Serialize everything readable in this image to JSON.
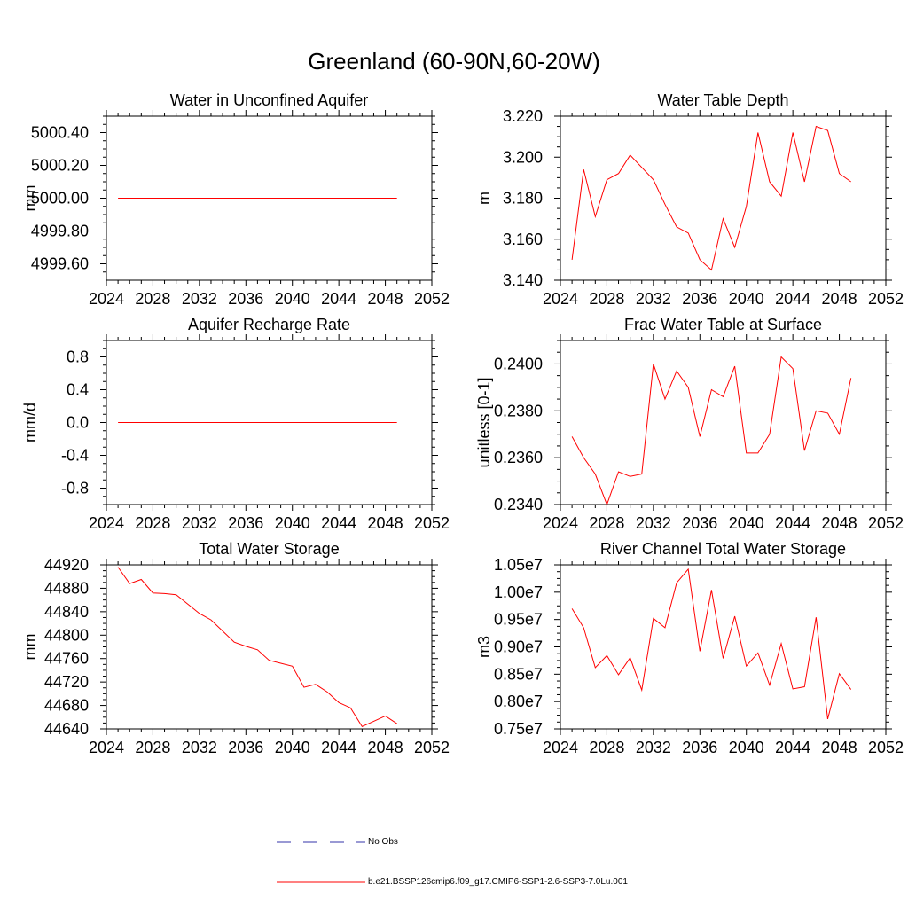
{
  "title": "Greenland (60-90N,60-20W)",
  "colors": {
    "model": "#ff0000",
    "obs": "#3333aa",
    "axis": "#000000"
  },
  "legend": {
    "obs_label": "No Obs",
    "model_label": "b.e21.BSSP126cmip6.f09_g17.CMIP6-SSP1-2.6-SSP3-7.0Lu.001"
  },
  "chart_data": [
    {
      "type": "line",
      "title": "Water in Unconfined Aquifer",
      "ylabel": "mm",
      "xlim": [
        2024,
        2052
      ],
      "ylim": [
        4999.5,
        5000.5
      ],
      "xticks": [
        2024,
        2028,
        2032,
        2036,
        2040,
        2044,
        2048,
        2052
      ],
      "yticks": [
        4999.6,
        4999.8,
        5000.0,
        5000.2,
        5000.4
      ],
      "ytick_labels": [
        "4999.60",
        "4999.80",
        "5000.00",
        "5000.20",
        "5000.40"
      ],
      "series": [
        {
          "x": [
            2025,
            2026,
            2027,
            2028,
            2029,
            2030,
            2031,
            2032,
            2033,
            2034,
            2035,
            2036,
            2037,
            2038,
            2039,
            2040,
            2041,
            2042,
            2043,
            2044,
            2045,
            2046,
            2047,
            2048,
            2049
          ],
          "values": [
            5000,
            5000,
            5000,
            5000,
            5000,
            5000,
            5000,
            5000,
            5000,
            5000,
            5000,
            5000,
            5000,
            5000,
            5000,
            5000,
            5000,
            5000,
            5000,
            5000,
            5000,
            5000,
            5000,
            5000,
            5000
          ]
        }
      ]
    },
    {
      "type": "line",
      "title": "Water Table Depth",
      "ylabel": "m",
      "xlim": [
        2024,
        2052
      ],
      "ylim": [
        3.14,
        3.22
      ],
      "xticks": [
        2024,
        2028,
        2032,
        2036,
        2040,
        2044,
        2048,
        2052
      ],
      "yticks": [
        3.14,
        3.16,
        3.18,
        3.2,
        3.22
      ],
      "ytick_labels": [
        "3.140",
        "3.160",
        "3.180",
        "3.200",
        "3.220"
      ],
      "series": [
        {
          "x": [
            2025,
            2026,
            2027,
            2028,
            2029,
            2030,
            2031,
            2032,
            2033,
            2034,
            2035,
            2036,
            2037,
            2038,
            2039,
            2040,
            2041,
            2042,
            2043,
            2044,
            2045,
            2046,
            2047,
            2048,
            2049
          ],
          "values": [
            3.15,
            3.194,
            3.171,
            3.189,
            3.192,
            3.201,
            3.195,
            3.189,
            3.177,
            3.166,
            3.163,
            3.15,
            3.145,
            3.17,
            3.156,
            3.176,
            3.212,
            3.188,
            3.181,
            3.212,
            3.188,
            3.215,
            3.213,
            3.192,
            3.188
          ]
        }
      ]
    },
    {
      "type": "line",
      "title": "Aquifer Recharge Rate",
      "ylabel": "mm/d",
      "xlim": [
        2024,
        2052
      ],
      "ylim": [
        -1.0,
        1.0
      ],
      "xticks": [
        2024,
        2028,
        2032,
        2036,
        2040,
        2044,
        2048,
        2052
      ],
      "yticks": [
        -0.8,
        -0.4,
        0.0,
        0.4,
        0.8
      ],
      "ytick_labels": [
        "-0.8",
        "-0.4",
        "0.0",
        "0.4",
        "0.8"
      ],
      "series": [
        {
          "x": [
            2025,
            2026,
            2027,
            2028,
            2029,
            2030,
            2031,
            2032,
            2033,
            2034,
            2035,
            2036,
            2037,
            2038,
            2039,
            2040,
            2041,
            2042,
            2043,
            2044,
            2045,
            2046,
            2047,
            2048,
            2049
          ],
          "values": [
            0,
            0,
            0,
            0,
            0,
            0,
            0,
            0,
            0,
            0,
            0,
            0,
            0,
            0,
            0,
            0,
            0,
            0,
            0,
            0,
            0,
            0,
            0,
            0,
            0
          ]
        }
      ]
    },
    {
      "type": "line",
      "title": "Frac Water Table at Surface",
      "ylabel": "unitless [0-1]",
      "xlim": [
        2024,
        2052
      ],
      "ylim": [
        0.234,
        0.241
      ],
      "xticks": [
        2024,
        2028,
        2032,
        2036,
        2040,
        2044,
        2048,
        2052
      ],
      "yticks": [
        0.234,
        0.236,
        0.238,
        0.24
      ],
      "ytick_labels": [
        "0.2340",
        "0.2360",
        "0.2380",
        "0.2400"
      ],
      "series": [
        {
          "x": [
            2025,
            2026,
            2027,
            2028,
            2029,
            2030,
            2031,
            2032,
            2033,
            2034,
            2035,
            2036,
            2037,
            2038,
            2039,
            2040,
            2041,
            2042,
            2043,
            2044,
            2045,
            2046,
            2047,
            2048,
            2049
          ],
          "values": [
            0.2369,
            0.236,
            0.2353,
            0.234,
            0.2354,
            0.2352,
            0.2353,
            0.24,
            0.2385,
            0.2397,
            0.239,
            0.2369,
            0.2389,
            0.2386,
            0.2399,
            0.2362,
            0.2362,
            0.237,
            0.2403,
            0.2398,
            0.2363,
            0.238,
            0.2379,
            0.237,
            0.2394
          ]
        }
      ]
    },
    {
      "type": "line",
      "title": "Total Water Storage",
      "ylabel": "mm",
      "xlim": [
        2024,
        2052
      ],
      "ylim": [
        44640,
        44920
      ],
      "xticks": [
        2024,
        2028,
        2032,
        2036,
        2040,
        2044,
        2048,
        2052
      ],
      "yticks": [
        44640,
        44680,
        44720,
        44760,
        44800,
        44840,
        44880,
        44920
      ],
      "ytick_labels": [
        "44640",
        "44680",
        "44720",
        "44760",
        "44800",
        "44840",
        "44880",
        "44920"
      ],
      "series": [
        {
          "x": [
            2025,
            2026,
            2027,
            2028,
            2029,
            2030,
            2031,
            2032,
            2033,
            2034,
            2035,
            2036,
            2037,
            2038,
            2039,
            2040,
            2041,
            2042,
            2043,
            2044,
            2045,
            2046,
            2047,
            2048,
            2049
          ],
          "values": [
            44916,
            44888,
            44895,
            44872,
            44871,
            44869,
            44853,
            44837,
            44826,
            44807,
            44788,
            44781,
            44775,
            44757,
            44752,
            44747,
            44711,
            44716,
            44703,
            44685,
            44676,
            44644,
            44653,
            44662,
            44649
          ]
        }
      ]
    },
    {
      "type": "line",
      "title": "River Channel Total Water Storage",
      "ylabel": "m3",
      "xlim": [
        2024,
        2052
      ],
      "ylim": [
        7500000,
        10500000
      ],
      "xticks": [
        2024,
        2028,
        2032,
        2036,
        2040,
        2044,
        2048,
        2052
      ],
      "yticks": [
        7500000,
        8000000,
        8500000,
        9000000,
        9500000,
        10000000,
        10500000
      ],
      "ytick_labels": [
        "0.75e7",
        "0.80e7",
        "0.85e7",
        "0.90e7",
        "0.95e7",
        "1.00e7",
        "1.05e7"
      ],
      "series": [
        {
          "x": [
            2025,
            2026,
            2027,
            2028,
            2029,
            2030,
            2031,
            2032,
            2033,
            2034,
            2035,
            2036,
            2037,
            2038,
            2039,
            2040,
            2041,
            2042,
            2043,
            2044,
            2045,
            2046,
            2047,
            2048,
            2049
          ],
          "values": [
            9700000,
            9350000,
            8620000,
            8840000,
            8490000,
            8800000,
            8210000,
            9520000,
            9350000,
            10170000,
            10420000,
            8920000,
            10040000,
            8790000,
            9560000,
            8650000,
            8890000,
            8300000,
            9060000,
            8230000,
            8270000,
            9540000,
            7680000,
            8510000,
            8220000
          ]
        }
      ]
    }
  ]
}
